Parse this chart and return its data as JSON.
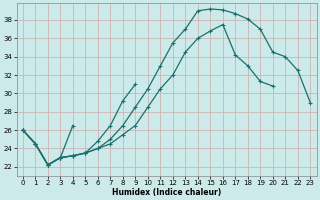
{
  "xlabel": "Humidex (Indice chaleur)",
  "xlim": [
    -0.5,
    23.5
  ],
  "ylim": [
    21.0,
    39.8
  ],
  "yticks": [
    22,
    24,
    26,
    28,
    30,
    32,
    34,
    36,
    38
  ],
  "xticks": [
    0,
    1,
    2,
    3,
    4,
    5,
    6,
    7,
    8,
    9,
    10,
    11,
    12,
    13,
    14,
    15,
    16,
    17,
    18,
    19,
    20,
    21,
    22,
    23
  ],
  "bg_color": "#cceaea",
  "grid_color": "#ccaaaa",
  "line_color": "#1a7070",
  "curve1_y": [
    26.0,
    24.5,
    22.2,
    23.0,
    26.5,
    null,
    null,
    null,
    null,
    null,
    null,
    null,
    null,
    null,
    null,
    null,
    null,
    null,
    null,
    null,
    null,
    null,
    null,
    null
  ],
  "curve2_y": [
    26.0,
    24.5,
    22.2,
    23.0,
    23.2,
    23.5,
    24.8,
    26.5,
    29.2,
    31.0,
    null,
    null,
    null,
    null,
    null,
    null,
    null,
    null,
    null,
    null,
    null,
    null,
    null,
    null
  ],
  "curve3_y": [
    26.0,
    24.5,
    22.2,
    23.0,
    23.2,
    23.5,
    24.0,
    24.5,
    25.5,
    26.5,
    28.5,
    30.5,
    32.0,
    34.5,
    36.0,
    36.8,
    37.5,
    34.2,
    33.0,
    31.3,
    30.8,
    null,
    null,
    null
  ],
  "curve4_y": [
    26.0,
    24.5,
    22.2,
    23.0,
    23.2,
    23.5,
    24.0,
    25.0,
    26.5,
    28.5,
    30.5,
    33.0,
    35.5,
    37.0,
    39.0,
    39.2,
    39.1,
    38.7,
    38.1,
    37.0,
    34.5,
    34.0,
    32.5,
    29.0
  ]
}
